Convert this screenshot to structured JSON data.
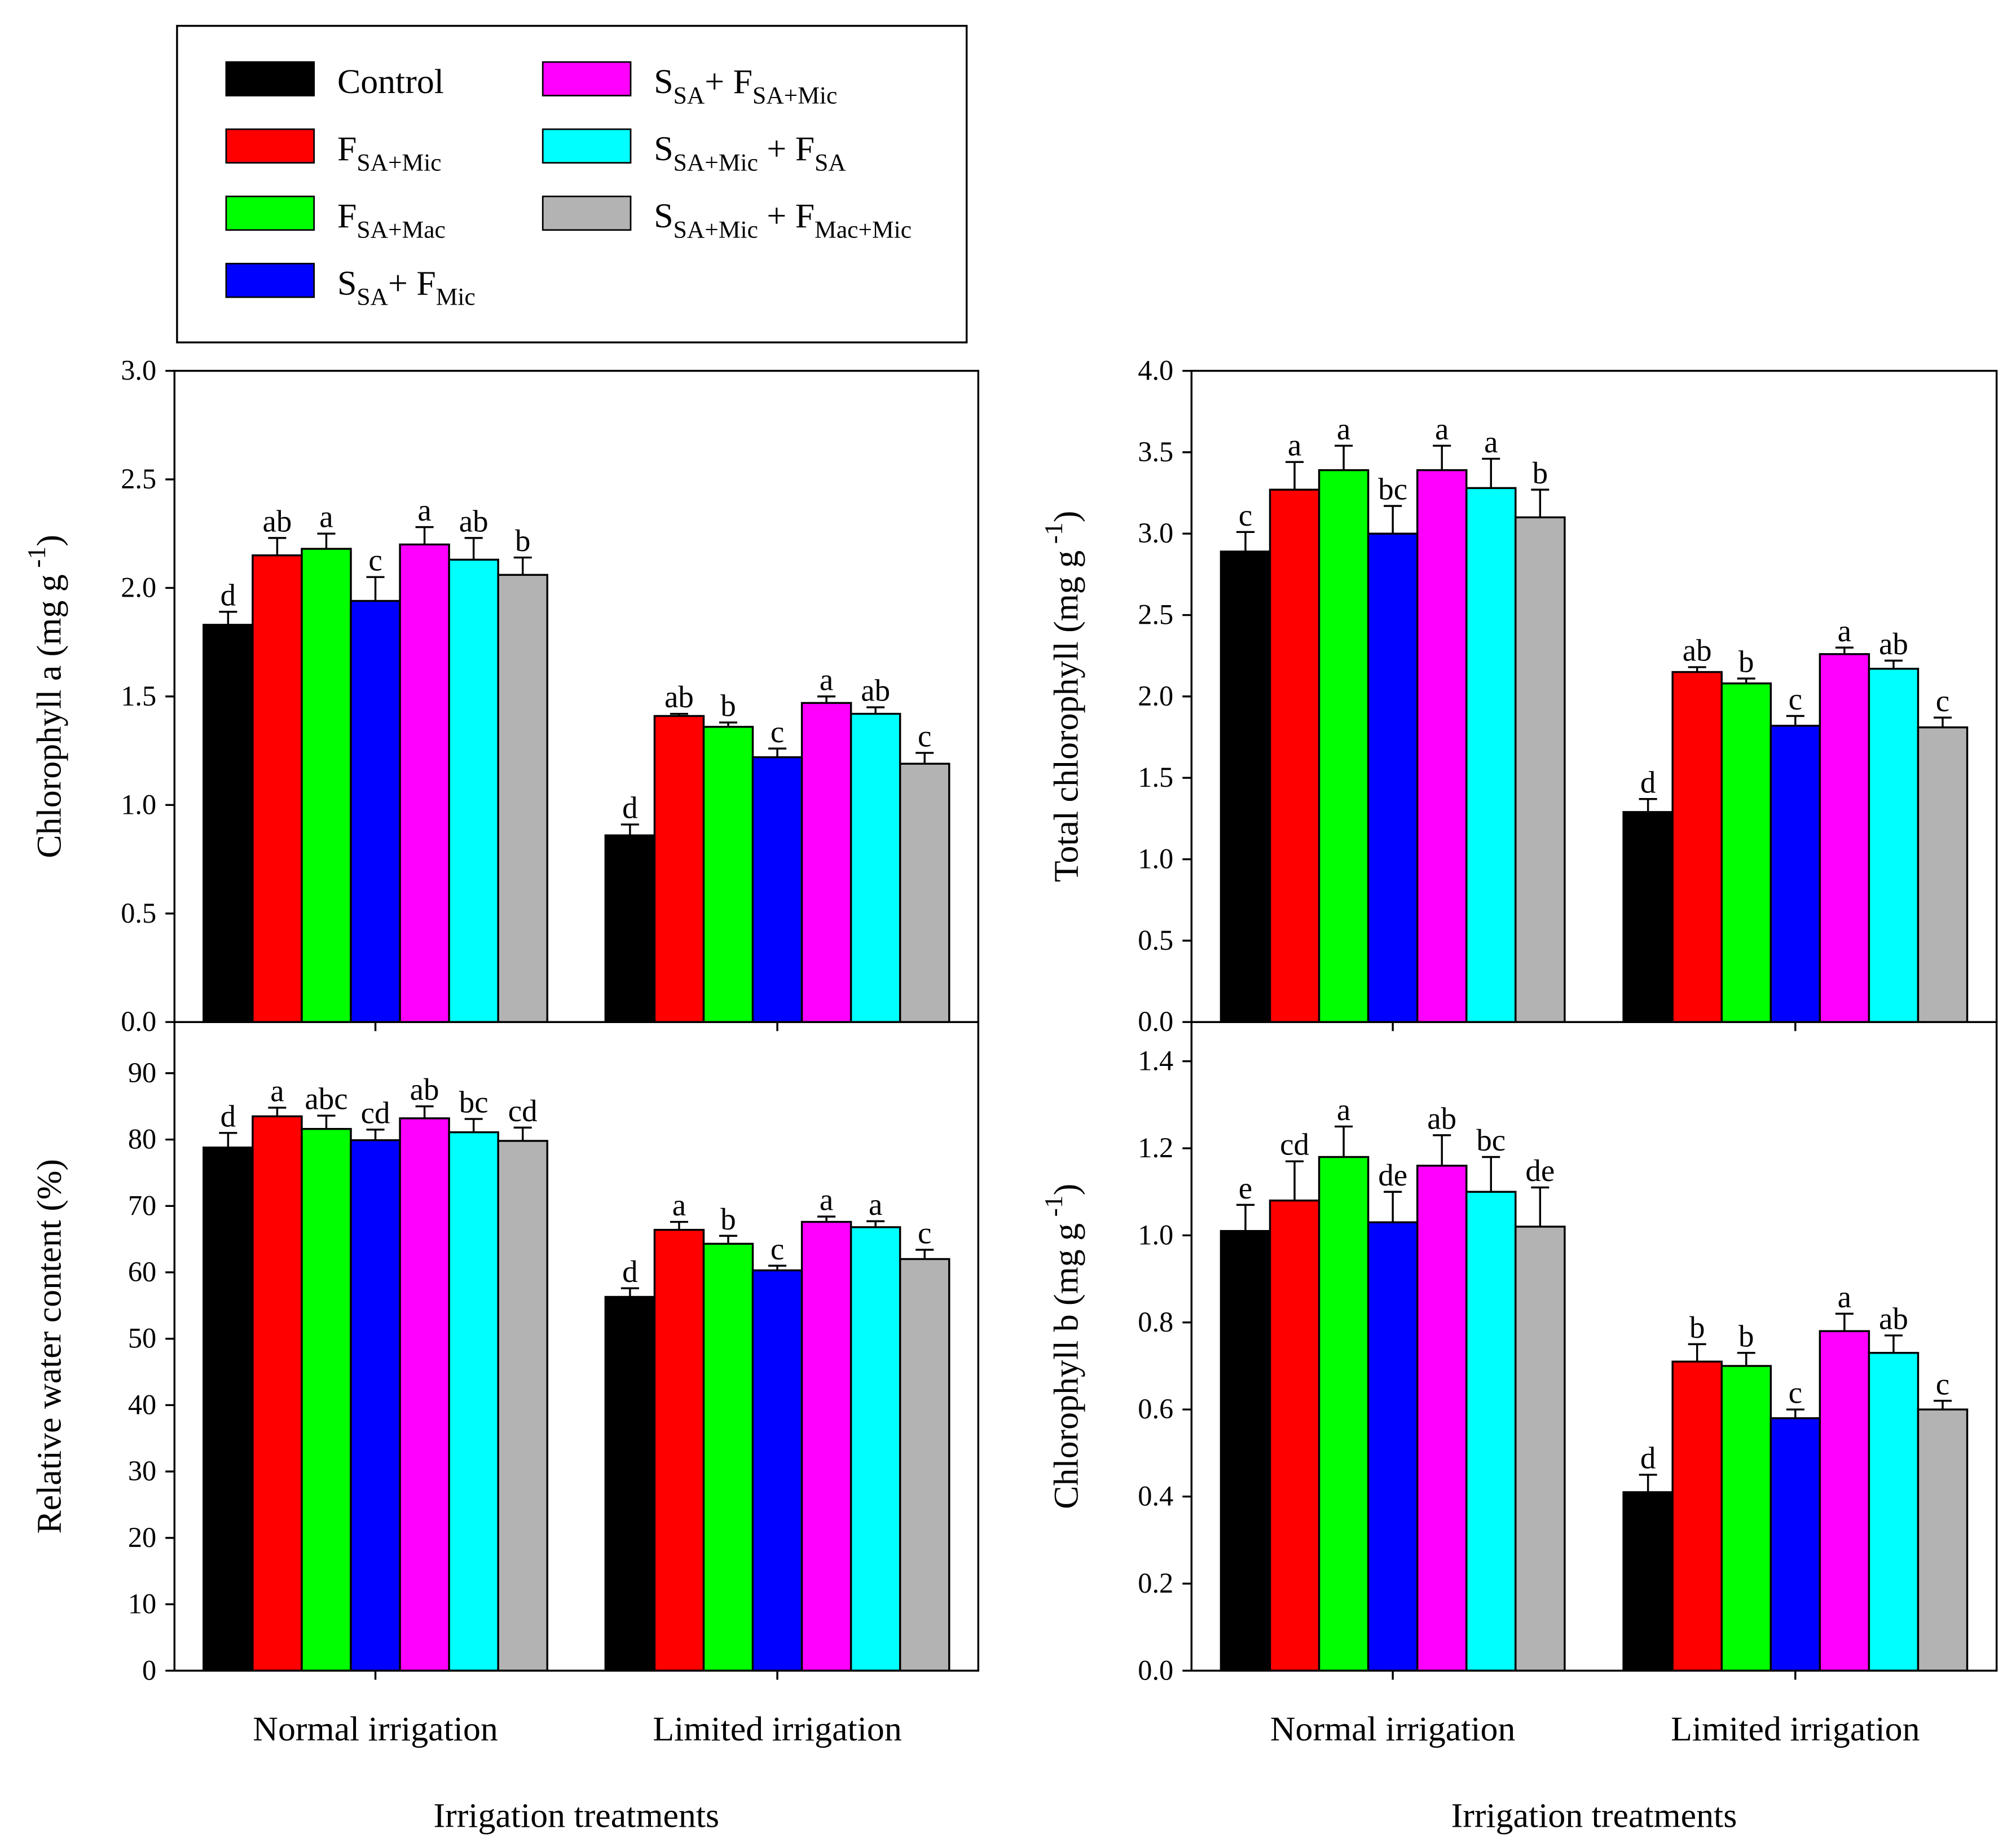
{
  "legend": [
    {
      "color": "#000000",
      "label": [
        {
          "t": "Control"
        }
      ]
    },
    {
      "color": "#ff0000",
      "label": [
        {
          "t": "F"
        },
        {
          "t": "SA+Mic",
          "sub": true
        }
      ]
    },
    {
      "color": "#00ff00",
      "label": [
        {
          "t": "F"
        },
        {
          "t": "SA+Mac",
          "sub": true
        }
      ]
    },
    {
      "color": "#0000ff",
      "label": [
        {
          "t": "S"
        },
        {
          "t": "SA",
          "sub": true
        },
        {
          "t": "+ F"
        },
        {
          "t": "Mic",
          "sub": true
        }
      ]
    },
    {
      "color": "#ff00ff",
      "label": [
        {
          "t": "S"
        },
        {
          "t": "SA",
          "sub": true
        },
        {
          "t": "+ F"
        },
        {
          "t": "SA+Mic",
          "sub": true
        }
      ]
    },
    {
      "color": "#00ffff",
      "label": [
        {
          "t": "S"
        },
        {
          "t": "SA+Mic",
          "sub": true
        },
        {
          "t": " + F"
        },
        {
          "t": "SA",
          "sub": true
        }
      ]
    },
    {
      "color": "#b3b3b3",
      "label": [
        {
          "t": "S"
        },
        {
          "t": "SA+Mic",
          "sub": true
        },
        {
          "t": " + F"
        },
        {
          "t": "Mac+Mic",
          "sub": true
        }
      ]
    }
  ],
  "chart_data": [
    {
      "type": "bar",
      "panel": "top-left",
      "ylabel": "Chlorophyll a (mg g",
      "ylabel_sup": "-1",
      "ylabel_end": ")",
      "xlabel": "",
      "ylim": [
        0,
        3.0
      ],
      "yticks": [
        "0.0",
        "0.5",
        "1.0",
        "1.5",
        "2.0",
        "2.5",
        "3.0"
      ],
      "ytick_values": [
        0,
        0.5,
        1,
        1.5,
        2,
        2.5,
        3
      ],
      "categories": [
        "Normal  irrigation",
        "Limited irrigation"
      ],
      "values": [
        [
          1.83,
          2.15,
          2.18,
          1.94,
          2.2,
          2.13,
          2.06
        ],
        [
          0.86,
          1.41,
          1.36,
          1.22,
          1.47,
          1.42,
          1.19
        ]
      ],
      "errors": [
        [
          0.06,
          0.08,
          0.07,
          0.11,
          0.08,
          0.1,
          0.08
        ],
        [
          0.05,
          0.01,
          0.02,
          0.04,
          0.03,
          0.03,
          0.05
        ]
      ],
      "letters": [
        [
          "d",
          "ab",
          "a",
          "c",
          "a",
          "ab",
          "b"
        ],
        [
          "d",
          "ab",
          "b",
          "c",
          "a",
          "ab",
          "c"
        ]
      ]
    },
    {
      "type": "bar",
      "panel": "top-right",
      "ylabel": "Total chlorophyll (mg g",
      "ylabel_sup": "-1",
      "ylabel_end": ")",
      "xlabel": "",
      "ylim": [
        0,
        4.0
      ],
      "yticks": [
        "0.0",
        "0.5",
        "1.0",
        "1.5",
        "2.0",
        "2.5",
        "3.0",
        "3.5",
        "4.0"
      ],
      "ytick_values": [
        0,
        0.5,
        1,
        1.5,
        2,
        2.5,
        3,
        3.5,
        4
      ],
      "categories": [
        "Normal  irrigation",
        "Limited irrigation"
      ],
      "values": [
        [
          2.89,
          3.27,
          3.39,
          3.0,
          3.39,
          3.28,
          3.1
        ],
        [
          1.29,
          2.15,
          2.08,
          1.82,
          2.26,
          2.17,
          1.81
        ]
      ],
      "errors": [
        [
          0.12,
          0.17,
          0.15,
          0.17,
          0.15,
          0.18,
          0.17
        ],
        [
          0.08,
          0.03,
          0.03,
          0.06,
          0.04,
          0.05,
          0.06
        ]
      ],
      "letters": [
        [
          "c",
          "a",
          "a",
          "bc",
          "a",
          "a",
          "b"
        ],
        [
          "d",
          "ab",
          "b",
          "c",
          "a",
          "ab",
          "c"
        ]
      ]
    },
    {
      "type": "bar",
      "panel": "bottom-left",
      "ylabel": "Relative water content (%)",
      "ylabel_sup": "",
      "ylabel_end": "",
      "xlabel": "Irrigation treatments",
      "ylim": [
        0,
        97.7
      ],
      "yticks": [
        "0",
        "10",
        "20",
        "30",
        "40",
        "50",
        "60",
        "70",
        "80",
        "90"
      ],
      "ytick_values": [
        0,
        10,
        20,
        30,
        40,
        50,
        60,
        70,
        80,
        90
      ],
      "categories": [
        "Normal  irrigation",
        "Limited irrigation"
      ],
      "values": [
        [
          78.8,
          83.5,
          81.6,
          79.9,
          83.2,
          81.1,
          79.8
        ],
        [
          56.3,
          66.4,
          64.3,
          60.3,
          67.6,
          66.8,
          62.0
        ]
      ],
      "errors": [
        [
          2.2,
          1.3,
          2.0,
          1.6,
          1.8,
          2.0,
          2.0
        ],
        [
          1.3,
          1.2,
          1.2,
          0.7,
          0.8,
          0.9,
          1.4
        ]
      ],
      "letters": [
        [
          "d",
          "a",
          "abc",
          "cd",
          "ab",
          "bc",
          "cd"
        ],
        [
          "d",
          "a",
          "b",
          "c",
          "a",
          "a",
          "c"
        ]
      ]
    },
    {
      "type": "bar",
      "panel": "bottom-right",
      "ylabel": "Chlorophyll b (mg g",
      "ylabel_sup": "-1",
      "ylabel_end": ")",
      "xlabel": "Irrigation treatments",
      "ylim": [
        0,
        1.49
      ],
      "yticks": [
        "0.0",
        "0.2",
        "0.4",
        "0.6",
        "0.8",
        "1.0",
        "1.2",
        "1.4"
      ],
      "ytick_values": [
        0,
        0.2,
        0.4,
        0.6,
        0.8,
        1.0,
        1.2,
        1.4
      ],
      "categories": [
        "Normal  irrigation",
        "Limited irrigation"
      ],
      "values": [
        [
          1.01,
          1.08,
          1.18,
          1.03,
          1.16,
          1.1,
          1.02
        ],
        [
          0.41,
          0.71,
          0.7,
          0.58,
          0.78,
          0.73,
          0.6
        ]
      ],
      "errors": [
        [
          0.06,
          0.09,
          0.07,
          0.07,
          0.07,
          0.08,
          0.09
        ],
        [
          0.04,
          0.04,
          0.03,
          0.02,
          0.04,
          0.04,
          0.02
        ]
      ],
      "letters": [
        [
          "e",
          "cd",
          "a",
          "de",
          "ab",
          "bc",
          "de"
        ],
        [
          "d",
          "b",
          "b",
          "c",
          "a",
          "ab",
          "c"
        ]
      ]
    }
  ]
}
